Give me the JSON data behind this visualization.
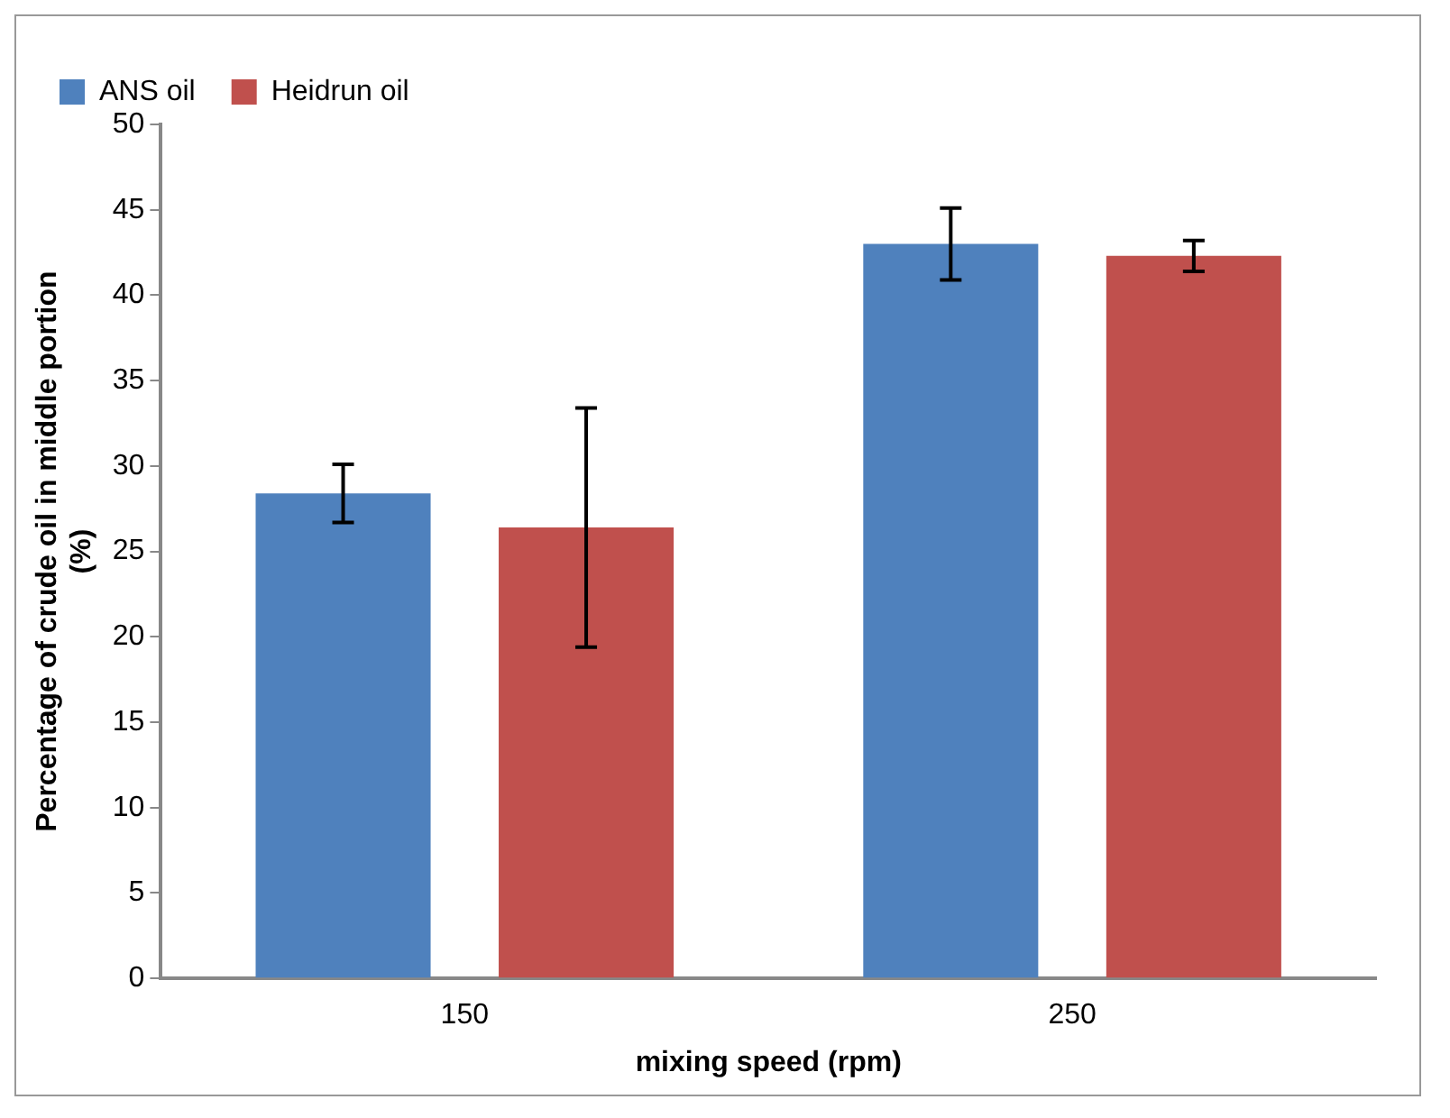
{
  "chart_data": {
    "type": "bar",
    "xlabel": "mixing speed (rpm)",
    "ylabel": "Percentage of crude oil in middle portion\n(%)",
    "categories": [
      "150",
      "250"
    ],
    "series": [
      {
        "name": "ANS oil",
        "color": "#4f81bd",
        "values": [
          28.4,
          43.0
        ],
        "errors": [
          1.7,
          2.1
        ]
      },
      {
        "name": "Heidrun oil",
        "color": "#c0504d",
        "values": [
          26.4,
          42.3
        ],
        "errors": [
          7.0,
          0.9
        ]
      }
    ],
    "ylim": [
      0,
      50
    ],
    "yticks": [
      0,
      5,
      10,
      15,
      20,
      25,
      30,
      35,
      40,
      45,
      50
    ],
    "grid": false,
    "legend": "top left"
  }
}
